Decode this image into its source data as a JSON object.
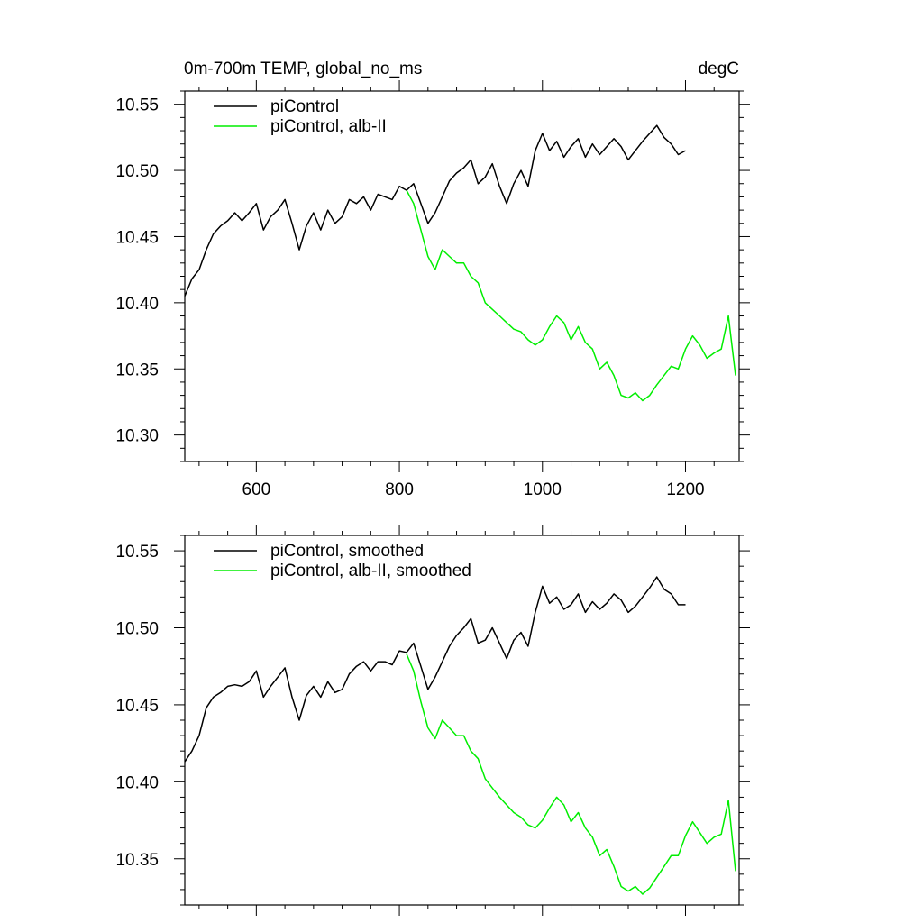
{
  "figure": {
    "top_title_left": "0m-700m TEMP, global_no_ms",
    "top_title_right": "degC"
  },
  "colors": {
    "control": "#000000",
    "albedo": "#00ee00"
  },
  "chart_data": [
    {
      "type": "line",
      "title": "0m-700m TEMP, global_no_ms",
      "units": "degC",
      "xlim": [
        500,
        1275
      ],
      "ylim": [
        10.28,
        10.56
      ],
      "x_ticks": [
        600,
        800,
        1000,
        1200
      ],
      "x_tick_labels": [
        "600",
        "800",
        "1000",
        "1200"
      ],
      "y_ticks": [
        10.3,
        10.35,
        10.4,
        10.45,
        10.5,
        10.55
      ],
      "y_tick_labels": [
        "10.30",
        "10.35",
        "10.40",
        "10.45",
        "10.50",
        "10.55"
      ],
      "legend": "top-left",
      "grid": false,
      "series": [
        {
          "name": "piControl",
          "color": "#000000",
          "x": [
            500,
            510,
            520,
            530,
            540,
            550,
            560,
            570,
            580,
            590,
            600,
            610,
            620,
            630,
            640,
            650,
            660,
            670,
            680,
            690,
            700,
            710,
            720,
            730,
            740,
            750,
            760,
            770,
            780,
            790,
            800,
            810,
            820,
            830,
            840,
            850,
            860,
            870,
            880,
            890,
            900,
            910,
            920,
            930,
            940,
            950,
            960,
            970,
            980,
            990,
            1000,
            1010,
            1020,
            1030,
            1040,
            1050,
            1060,
            1070,
            1080,
            1090,
            1100,
            1110,
            1120,
            1130,
            1140,
            1150,
            1160,
            1170,
            1180,
            1190,
            1200
          ],
          "y": [
            10.405,
            10.418,
            10.425,
            10.44,
            10.452,
            10.458,
            10.462,
            10.468,
            10.462,
            10.468,
            10.475,
            10.455,
            10.465,
            10.47,
            10.478,
            10.46,
            10.44,
            10.458,
            10.468,
            10.455,
            10.47,
            10.46,
            10.465,
            10.478,
            10.475,
            10.48,
            10.47,
            10.482,
            10.48,
            10.478,
            10.488,
            10.485,
            10.49,
            10.475,
            10.46,
            10.468,
            10.48,
            10.492,
            10.498,
            10.502,
            10.508,
            10.49,
            10.495,
            10.505,
            10.488,
            10.475,
            10.49,
            10.5,
            10.488,
            10.515,
            10.528,
            10.515,
            10.522,
            10.51,
            10.518,
            10.524,
            10.51,
            10.52,
            10.512,
            10.518,
            10.524,
            10.518,
            10.508,
            10.515,
            10.522,
            10.528,
            10.534,
            10.525,
            10.52,
            10.512,
            10.515
          ]
        },
        {
          "name": "piControl, alb-II",
          "color": "#00ee00",
          "x": [
            810,
            820,
            830,
            840,
            850,
            860,
            870,
            880,
            890,
            900,
            910,
            920,
            930,
            940,
            950,
            960,
            970,
            980,
            990,
            1000,
            1010,
            1020,
            1030,
            1040,
            1050,
            1060,
            1070,
            1080,
            1090,
            1100,
            1110,
            1120,
            1130,
            1140,
            1150,
            1160,
            1170,
            1180,
            1190,
            1200,
            1210,
            1220,
            1230,
            1240,
            1250,
            1260,
            1270
          ],
          "y": [
            10.485,
            10.475,
            10.455,
            10.435,
            10.425,
            10.44,
            10.435,
            10.43,
            10.43,
            10.42,
            10.415,
            10.4,
            10.395,
            10.39,
            10.385,
            10.38,
            10.378,
            10.372,
            10.368,
            10.372,
            10.382,
            10.39,
            10.385,
            10.372,
            10.382,
            10.37,
            10.365,
            10.35,
            10.355,
            10.345,
            10.33,
            10.328,
            10.332,
            10.326,
            10.33,
            10.338,
            10.345,
            10.352,
            10.35,
            10.365,
            10.375,
            10.368,
            10.358,
            10.362,
            10.365,
            10.39,
            10.345
          ]
        }
      ]
    },
    {
      "type": "line",
      "xlim": [
        500,
        1275
      ],
      "ylim": [
        10.32,
        10.56
      ],
      "x_ticks": [
        600,
        800,
        1000,
        1200
      ],
      "y_ticks": [
        10.35,
        10.4,
        10.45,
        10.5,
        10.55
      ],
      "y_tick_labels": [
        "10.35",
        "10.40",
        "10.45",
        "10.50",
        "10.55"
      ],
      "legend": "top-left",
      "grid": false,
      "series": [
        {
          "name": "piControl, smoothed",
          "color": "#000000",
          "x": [
            500,
            510,
            520,
            530,
            540,
            550,
            560,
            570,
            580,
            590,
            600,
            610,
            620,
            630,
            640,
            650,
            660,
            670,
            680,
            690,
            700,
            710,
            720,
            730,
            740,
            750,
            760,
            770,
            780,
            790,
            800,
            810,
            820,
            830,
            840,
            850,
            860,
            870,
            880,
            890,
            900,
            910,
            920,
            930,
            940,
            950,
            960,
            970,
            980,
            990,
            1000,
            1010,
            1020,
            1030,
            1040,
            1050,
            1060,
            1070,
            1080,
            1090,
            1100,
            1110,
            1120,
            1130,
            1140,
            1150,
            1160,
            1170,
            1180,
            1190,
            1200
          ],
          "y": [
            10.413,
            10.42,
            10.43,
            10.448,
            10.455,
            10.458,
            10.462,
            10.463,
            10.462,
            10.465,
            10.472,
            10.455,
            10.462,
            10.468,
            10.474,
            10.455,
            10.44,
            10.456,
            10.462,
            10.455,
            10.465,
            10.458,
            10.46,
            10.47,
            10.475,
            10.478,
            10.472,
            10.478,
            10.478,
            10.476,
            10.485,
            10.484,
            10.49,
            10.475,
            10.46,
            10.468,
            10.478,
            10.488,
            10.495,
            10.5,
            10.506,
            10.49,
            10.492,
            10.5,
            10.49,
            10.48,
            10.492,
            10.497,
            10.488,
            10.51,
            10.527,
            10.516,
            10.52,
            10.512,
            10.515,
            10.522,
            10.51,
            10.517,
            10.512,
            10.516,
            10.522,
            10.518,
            10.51,
            10.514,
            10.52,
            10.526,
            10.533,
            10.525,
            10.522,
            10.515,
            10.515
          ]
        },
        {
          "name": "piControl, alb-II, smoothed",
          "color": "#00ee00",
          "x": [
            810,
            820,
            830,
            840,
            850,
            860,
            870,
            880,
            890,
            900,
            910,
            920,
            930,
            940,
            950,
            960,
            970,
            980,
            990,
            1000,
            1010,
            1020,
            1030,
            1040,
            1050,
            1060,
            1070,
            1080,
            1090,
            1100,
            1110,
            1120,
            1130,
            1140,
            1150,
            1160,
            1170,
            1180,
            1190,
            1200,
            1210,
            1220,
            1230,
            1240,
            1250,
            1260,
            1270
          ],
          "y": [
            10.483,
            10.472,
            10.452,
            10.435,
            10.428,
            10.44,
            10.435,
            10.43,
            10.43,
            10.42,
            10.415,
            10.402,
            10.396,
            10.39,
            10.385,
            10.38,
            10.377,
            10.372,
            10.37,
            10.375,
            10.383,
            10.39,
            10.385,
            10.374,
            10.38,
            10.37,
            10.364,
            10.352,
            10.356,
            10.345,
            10.332,
            10.329,
            10.332,
            10.327,
            10.331,
            10.338,
            10.345,
            10.352,
            10.352,
            10.365,
            10.374,
            10.367,
            10.36,
            10.364,
            10.366,
            10.388,
            10.342
          ]
        }
      ]
    }
  ]
}
